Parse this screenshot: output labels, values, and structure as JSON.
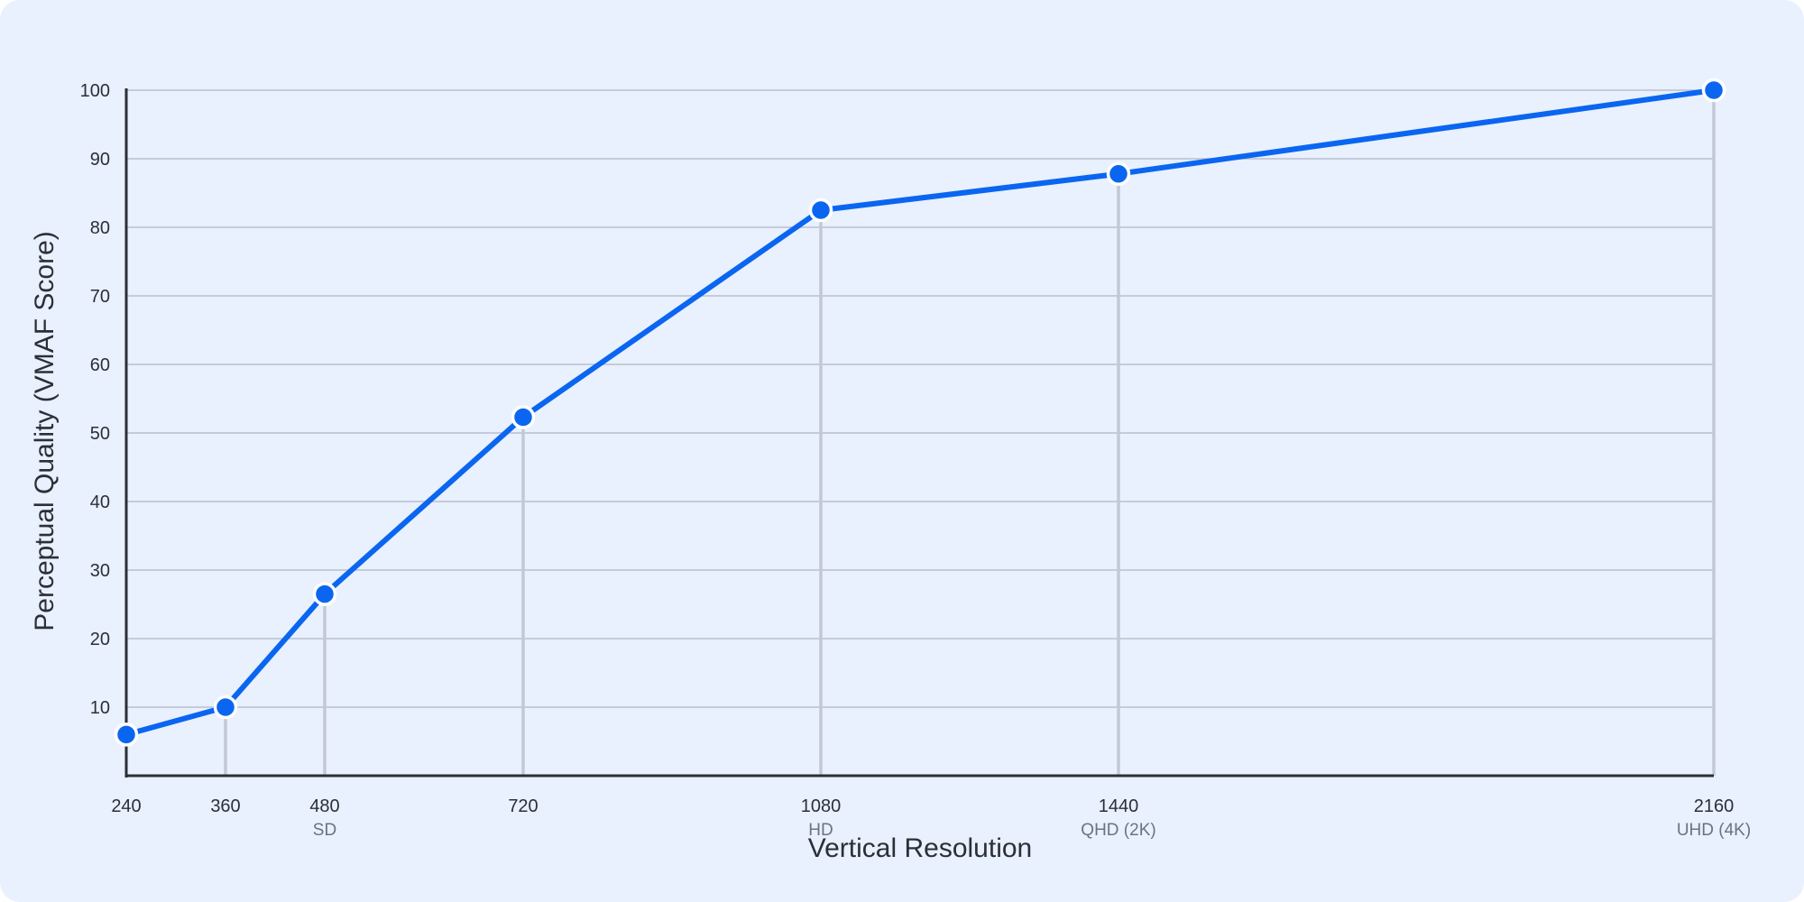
{
  "chart_data": {
    "type": "line",
    "xlabel": "Vertical Resolution",
    "ylabel": "Perceptual Quality (VMAF Score)",
    "x": [
      240,
      360,
      480,
      720,
      1080,
      1440,
      2160
    ],
    "x_tick_labels": [
      "240",
      "360",
      "480",
      "720",
      "1080",
      "1440",
      "2160"
    ],
    "x_sub_labels": [
      "",
      "",
      "SD",
      "",
      "HD",
      "QHD (2K)",
      "UHD (4K)"
    ],
    "series": [
      {
        "values": [
          6,
          10,
          26.5,
          52.3,
          82.5,
          87.8,
          100
        ]
      }
    ],
    "y_ticks": [
      "10",
      "20",
      "30",
      "40",
      "50",
      "60",
      "70",
      "80",
      "90",
      "100"
    ],
    "ylim": [
      0,
      100
    ],
    "grid": "horizontal",
    "colors": {
      "line": "#0a66f0",
      "grid": "#b7bfcf",
      "drop": "#c3c8d6",
      "axis": "#2b2f36",
      "background": "#e9f0fe"
    }
  }
}
